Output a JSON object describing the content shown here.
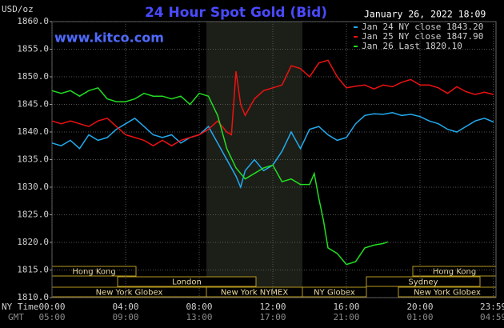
{
  "chart_data": {
    "type": "line",
    "title": "24 Hour Spot Gold (Bid)",
    "website": "www.kitco.com",
    "timestamp": "January 26, 2022 18:09",
    "y_unit_label": "USD/oz",
    "x_row_label": "NY Time",
    "x2_row_label": "GMT",
    "grid": true,
    "legend": "upper right",
    "xlim": [
      0,
      24
    ],
    "ylim": [
      1810,
      1860
    ],
    "xticks": [
      {
        "value": 0,
        "label": "00:00"
      },
      {
        "value": 4,
        "label": "04:00"
      },
      {
        "value": 8,
        "label": "08:00"
      },
      {
        "value": 12,
        "label": "12:00"
      },
      {
        "value": 16,
        "label": "16:00"
      },
      {
        "value": 20,
        "label": "20:00"
      },
      {
        "value": 23.98,
        "label": "23:59"
      }
    ],
    "x2_tick_labels": [
      "05:00",
      "09:00",
      "13:00",
      "17:00",
      "21:00",
      "01:00",
      "04:59"
    ],
    "yticks": [
      {
        "value": 1810,
        "label": "1810.0"
      },
      {
        "value": 1815,
        "label": "1815.0"
      },
      {
        "value": 1820,
        "label": "1820.0"
      },
      {
        "value": 1825,
        "label": "1825.0"
      },
      {
        "value": 1830,
        "label": "1830.0"
      },
      {
        "value": 1835,
        "label": "1835.0"
      },
      {
        "value": 1840,
        "label": "1840.0"
      },
      {
        "value": 1845,
        "label": "1845.0"
      },
      {
        "value": 1850,
        "label": "1850.0"
      },
      {
        "value": 1855,
        "label": "1855.0"
      },
      {
        "value": 1860,
        "label": "1860.0"
      }
    ],
    "sessions": [
      "Hong Kong",
      "London",
      "New York Globex",
      "New York NYMEX",
      "NY Globex",
      "Sydney",
      "Hong Kong",
      "New York Globex"
    ],
    "series": [
      {
        "name": "Jan 24 NY close 1843.20",
        "color": "#22aaee",
        "x": [
          0,
          0.5,
          1,
          1.5,
          2,
          2.5,
          3,
          3.5,
          4,
          4.5,
          5,
          5.5,
          6,
          6.5,
          7,
          7.5,
          8,
          8.5,
          9,
          9.5,
          10,
          10.25,
          10.5,
          11,
          11.5,
          12,
          12.5,
          13,
          13.5,
          14,
          14.5,
          15,
          15.5,
          16,
          16.5,
          17,
          17.5,
          18,
          18.5,
          19,
          19.5,
          20,
          20.5,
          21,
          21.5,
          22,
          22.5,
          23,
          23.5,
          24
        ],
        "values": [
          1838,
          1837.5,
          1838.5,
          1837,
          1839.5,
          1838.5,
          1839,
          1840.5,
          1841.5,
          1842.5,
          1841,
          1839.5,
          1839,
          1839.5,
          1838,
          1839,
          1839.5,
          1841,
          1838,
          1835,
          1832,
          1830,
          1833,
          1835,
          1833,
          1834,
          1836.5,
          1840,
          1837,
          1840.5,
          1841,
          1839.5,
          1838.5,
          1839,
          1841.5,
          1843,
          1843.3,
          1843.2,
          1843.5,
          1843,
          1843.2,
          1842.8,
          1842,
          1841.5,
          1840.5,
          1840,
          1841,
          1842,
          1842.5,
          1841.8
        ]
      },
      {
        "name": "Jan 25 NY close 1847.90",
        "color": "#ee1111",
        "x": [
          0,
          0.5,
          1,
          1.5,
          2,
          2.5,
          3,
          3.5,
          4,
          4.5,
          5,
          5.5,
          6,
          6.5,
          7,
          7.5,
          8,
          8.5,
          9,
          9.5,
          9.75,
          10,
          10.25,
          10.5,
          11,
          11.5,
          12,
          12.5,
          13,
          13.5,
          14,
          14.5,
          15,
          15.5,
          16,
          16.5,
          17,
          17.5,
          18,
          18.5,
          19,
          19.5,
          20,
          20.5,
          21,
          21.5,
          22,
          22.5,
          23,
          23.5,
          24
        ],
        "values": [
          1842,
          1841.5,
          1842,
          1841.5,
          1841,
          1842,
          1842.5,
          1841,
          1839.5,
          1839,
          1838.5,
          1837.5,
          1838.5,
          1837.5,
          1838.5,
          1839,
          1839.5,
          1840.5,
          1842,
          1840,
          1839.5,
          1851,
          1845,
          1843,
          1846,
          1847.5,
          1848,
          1848.5,
          1852,
          1851.5,
          1850,
          1852.5,
          1853,
          1850,
          1848,
          1848.3,
          1848.5,
          1847.8,
          1848.5,
          1848.2,
          1849,
          1849.5,
          1848.5,
          1848.5,
          1848,
          1847,
          1848.2,
          1847.3,
          1846.8,
          1847.2,
          1846.8
        ]
      },
      {
        "name": "Jan 26 Last 1820.10",
        "color": "#22dd22",
        "x": [
          0,
          0.5,
          1,
          1.5,
          2,
          2.5,
          3,
          3.5,
          4,
          4.5,
          5,
          5.5,
          6,
          6.5,
          7,
          7.5,
          8,
          8.5,
          9,
          9.5,
          10,
          10.5,
          11,
          11.5,
          12,
          12.5,
          13,
          13.5,
          14,
          14.25,
          14.5,
          14.75,
          15,
          15.5,
          16,
          16.5,
          17,
          17.5,
          18,
          18.25
        ],
        "values": [
          1847.5,
          1847,
          1847.5,
          1846.5,
          1847.5,
          1848,
          1846,
          1845.5,
          1845.5,
          1846,
          1847,
          1846.5,
          1846.5,
          1846,
          1846.5,
          1845,
          1847,
          1846.5,
          1843,
          1837,
          1833.5,
          1831.5,
          1832.5,
          1833.5,
          1834,
          1831,
          1831.5,
          1830.5,
          1830.5,
          1832.5,
          1828,
          1824,
          1819,
          1818,
          1816,
          1816.5,
          1819,
          1819.5,
          1819.8,
          1820.1
        ]
      }
    ]
  }
}
